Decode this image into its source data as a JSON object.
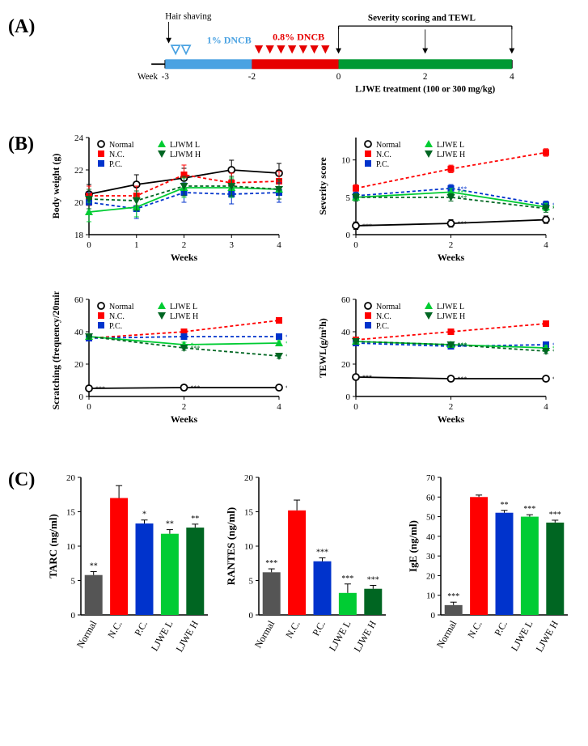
{
  "panelA_label": "(A)",
  "panelB_label": "(B)",
  "panelC_label": "(C)",
  "timeline": {
    "hair_shaving": "Hair shaving",
    "dncb1": "1% DNCB",
    "dncb1_color": "#4aa2e2",
    "dncb08": "0.8% DNCB",
    "dncb08_color": "#e60000",
    "severity": "Severity scoring and TEWL",
    "week_label": "Week",
    "weeks": [
      "-3",
      "-2",
      "0",
      "2",
      "4"
    ],
    "treatment": "LJWE treatment (100 or 300 mg/kg)",
    "green_bar_color": "#009933"
  },
  "legend": {
    "normal": "Normal",
    "normal_color": "#000000",
    "nc": "N.C.",
    "nc_color": "#ff0000",
    "pc": "P.C.",
    "pc_color": "#0033cc",
    "ljwel": "LJWE L",
    "ljwel_color": "#00cc33",
    "ljweh": "LJWE H",
    "ljweh_color": "#006622",
    "ljwml": "LJWM L",
    "ljwmh": "LJWM H"
  },
  "charts": {
    "bodyweight": {
      "ylabel": "Body weight (g)",
      "xlabel": "Weeks",
      "ylim": [
        18,
        24
      ],
      "yticks": [
        18,
        20,
        22,
        24
      ],
      "xlim": [
        0,
        4
      ],
      "xticks": [
        0,
        1,
        2,
        3,
        4
      ],
      "series": {
        "normal": [
          20.5,
          21.1,
          21.5,
          22.0,
          21.8
        ],
        "nc": [
          20.4,
          20.4,
          21.7,
          21.2,
          21.3
        ],
        "pc": [
          20.0,
          19.6,
          20.6,
          20.5,
          20.6
        ],
        "ljwel": [
          19.4,
          19.7,
          20.9,
          20.9,
          20.8
        ],
        "ljweh": [
          20.2,
          20.1,
          21.0,
          21.0,
          20.8
        ]
      },
      "err": 0.6
    },
    "severity": {
      "ylabel": "Severity score",
      "xlabel": "Weeks",
      "ylim": [
        0,
        13
      ],
      "yticks": [
        0,
        5,
        10
      ],
      "xlim": [
        0,
        4
      ],
      "xticks": [
        0,
        2,
        4
      ],
      "series": {
        "normal": [
          1.2,
          1.5,
          2.0
        ],
        "nc": [
          6.2,
          8.8,
          11.0
        ],
        "pc": [
          5.2,
          6.2,
          4.0
        ],
        "ljwel": [
          5.0,
          5.7,
          3.7
        ],
        "ljweh": [
          5.0,
          5.0,
          3.5
        ]
      },
      "err": 0.5,
      "sig": {
        "normal": [
          "***",
          "***",
          "***"
        ],
        "pc": [
          "",
          "***",
          "***"
        ],
        "ljwel": [
          "",
          "***",
          "***"
        ],
        "ljweh": [
          "",
          "***",
          "***"
        ]
      }
    },
    "scratching": {
      "ylabel": "Scratching (frequency/20min)",
      "xlabel": "Weeks",
      "ylim": [
        0,
        60
      ],
      "yticks": [
        0,
        20,
        40,
        60
      ],
      "xlim": [
        0,
        4
      ],
      "xticks": [
        0,
        2,
        4
      ],
      "series": {
        "normal": [
          5,
          5.5,
          5.5
        ],
        "nc": [
          36,
          40,
          47
        ],
        "pc": [
          36,
          37,
          37
        ],
        "ljwel": [
          37,
          32,
          33
        ],
        "ljweh": [
          37,
          30,
          25
        ]
      },
      "err": 1.5,
      "sig": {
        "normal": [
          "***",
          "***",
          "***"
        ],
        "pc": [
          "",
          "",
          "***"
        ],
        "ljwel": [
          "",
          "*",
          "***"
        ],
        "ljweh": [
          "",
          "***",
          "***"
        ]
      }
    },
    "tewl": {
      "ylabel": "TEWL(g/m²h)",
      "xlabel": "Weeks",
      "ylim": [
        0,
        60
      ],
      "yticks": [
        0,
        20,
        40,
        60
      ],
      "xlim": [
        0,
        4
      ],
      "xticks": [
        0,
        2,
        4
      ],
      "series": {
        "normal": [
          12,
          11,
          11
        ],
        "nc": [
          35,
          40,
          45
        ],
        "pc": [
          33,
          31,
          32
        ],
        "ljwel": [
          34,
          32,
          30
        ],
        "ljweh": [
          34,
          32,
          28
        ]
      },
      "err": 1.5,
      "sig": {
        "normal": [
          "***",
          "***",
          "***"
        ],
        "pc": [
          "",
          "***",
          "***"
        ],
        "ljwel": [
          "",
          "***",
          "***"
        ],
        "ljweh": [
          "",
          "***",
          "***"
        ]
      }
    }
  },
  "bars": {
    "groups": [
      "Normal",
      "N.C.",
      "P.C.",
      "LJWE L",
      "LJWE H"
    ],
    "colors": [
      "#555555",
      "#ff0000",
      "#0033cc",
      "#00cc33",
      "#006622"
    ],
    "tarc": {
      "ylabel": "TARC (ng/ml)",
      "ylim": [
        0,
        20
      ],
      "yticks": [
        0,
        5,
        10,
        15,
        20
      ],
      "values": [
        5.8,
        17.0,
        13.3,
        11.8,
        12.7
      ],
      "err": [
        0.5,
        1.8,
        0.5,
        0.6,
        0.5
      ],
      "sig": [
        "**",
        "",
        "*",
        "**",
        "**"
      ]
    },
    "rantes": {
      "ylabel": "RANTES (ng/ml)",
      "ylim": [
        0,
        20
      ],
      "yticks": [
        0,
        5,
        10,
        15,
        20
      ],
      "values": [
        6.2,
        15.2,
        7.8,
        3.2,
        3.8
      ],
      "err": [
        0.5,
        1.5,
        0.5,
        1.3,
        0.5
      ],
      "sig": [
        "***",
        "",
        "***",
        "***",
        "***"
      ]
    },
    "ige": {
      "ylabel": "IgE (ng/ml)",
      "ylim": [
        0,
        70
      ],
      "yticks": [
        0,
        10,
        20,
        30,
        40,
        50,
        60,
        70
      ],
      "values": [
        5,
        60,
        52,
        50,
        47
      ],
      "err": [
        1.5,
        1.0,
        1.2,
        1.0,
        1.2
      ],
      "sig": [
        "***",
        "",
        "**",
        "***",
        "***"
      ]
    }
  }
}
